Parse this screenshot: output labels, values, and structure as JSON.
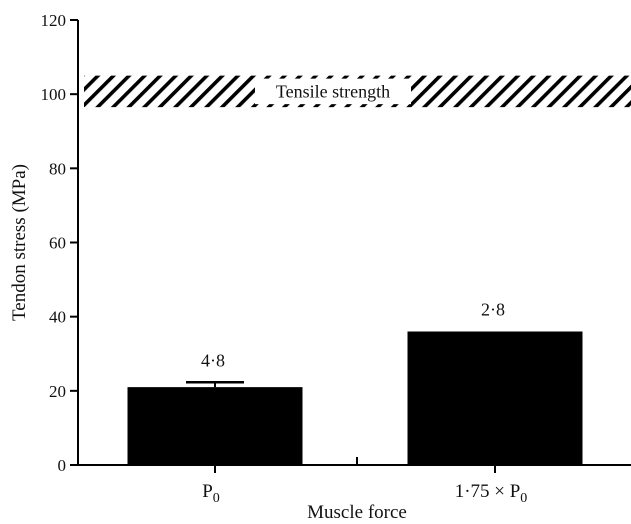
{
  "chart_data": {
    "type": "bar",
    "categories": [
      "P",
      "1·75 × P"
    ],
    "category_subscripts": [
      "0",
      "0"
    ],
    "values": [
      21,
      36
    ],
    "error_upper": [
      22.3,
      null
    ],
    "data_labels": [
      "4·8",
      "2·8"
    ],
    "title": "",
    "xlabel": "Muscle force",
    "ylabel": "Tendon stress (MPa)",
    "ylim": [
      0,
      120
    ],
    "yticks": [
      0,
      20,
      40,
      60,
      80,
      100,
      120
    ],
    "band": {
      "label": "Tensile strength",
      "lower": 96.5,
      "upper": 105,
      "fill": "hatched"
    },
    "grid": false,
    "colors": {
      "bar": "#000000",
      "axis": "#000000",
      "band_hatch": "#000000"
    }
  }
}
